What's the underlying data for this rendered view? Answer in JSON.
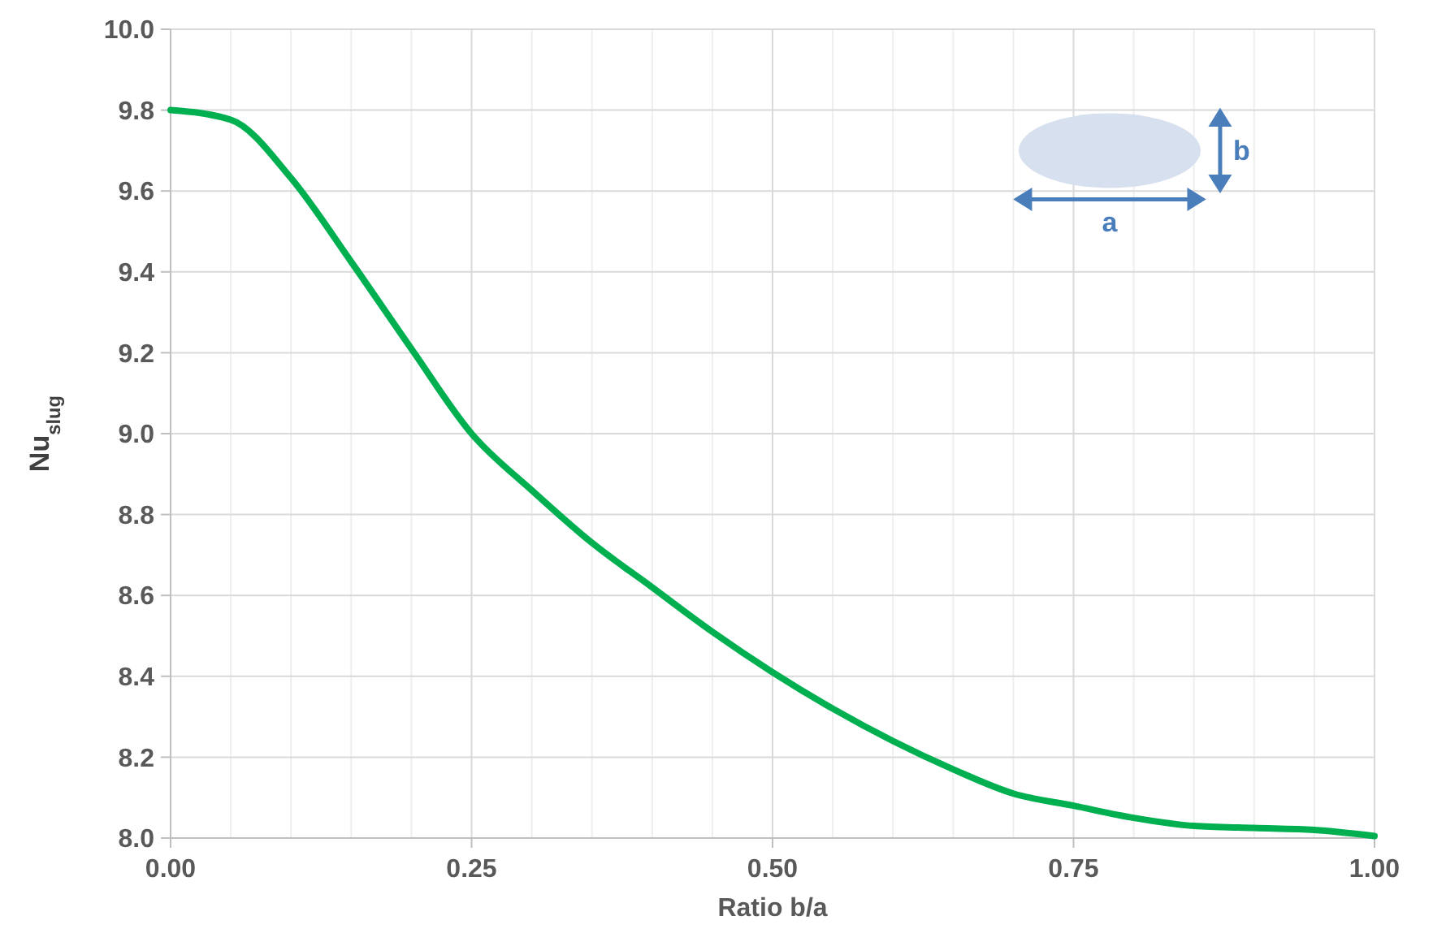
{
  "chart_data": {
    "type": "line",
    "xlabel": "Ratio b/a",
    "ylabel": "Nu$_{slug}$",
    "x": [
      0,
      0.05,
      0.1,
      0.15,
      0.2,
      0.25,
      0.3,
      0.35,
      0.4,
      0.45,
      0.5,
      0.55,
      0.6,
      0.65,
      0.7,
      0.75,
      0.8,
      0.85,
      0.9,
      0.95,
      1.0
    ],
    "series": [
      {
        "color": "#00b050",
        "values": [
          9.8,
          9.776,
          9.632,
          9.425,
          9.21,
          9.0,
          8.86,
          8.73,
          8.62,
          8.51,
          8.41,
          8.32,
          8.24,
          8.17,
          8.11,
          8.08,
          8.05,
          8.03,
          8.025,
          8.02,
          8.005
        ]
      }
    ],
    "xlim": [
      0,
      1
    ],
    "xticks": [
      {
        "value": 0,
        "label": "0.00"
      },
      {
        "value": 0.05,
        "label": null
      },
      {
        "value": 0.1,
        "label": null
      },
      {
        "value": 0.15,
        "label": null
      },
      {
        "value": 0.2,
        "label": null
      },
      {
        "value": 0.25,
        "label": "0.25"
      },
      {
        "value": 0.3,
        "label": null
      },
      {
        "value": 0.35,
        "label": null
      },
      {
        "value": 0.4,
        "label": null
      },
      {
        "value": 0.45,
        "label": null
      },
      {
        "value": 0.5,
        "label": "0.50"
      },
      {
        "value": 0.55,
        "label": null
      },
      {
        "value": 0.6,
        "label": null
      },
      {
        "value": 0.65,
        "label": null
      },
      {
        "value": 0.7,
        "label": null
      },
      {
        "value": 0.75,
        "label": "0.75"
      },
      {
        "value": 0.8,
        "label": null
      },
      {
        "value": 0.85,
        "label": null
      },
      {
        "value": 0.9,
        "label": null
      },
      {
        "value": 0.95,
        "label": null
      },
      {
        "value": 1,
        "label": "1.00"
      }
    ],
    "ylim": [
      8,
      10
    ],
    "yticks": [
      {
        "value": 8,
        "label": "8.0"
      },
      {
        "value": 8.2,
        "label": "8.2"
      },
      {
        "value": 8.4,
        "label": "8.4"
      },
      {
        "value": 8.6,
        "label": "8.6"
      },
      {
        "value": 8.8,
        "label": "8.8"
      },
      {
        "value": 9,
        "label": "9.0"
      },
      {
        "value": 9.2,
        "label": "9.2"
      },
      {
        "value": 9.4,
        "label": "9.4"
      },
      {
        "value": 9.6,
        "label": "9.6"
      },
      {
        "value": 9.8,
        "label": "9.8"
      },
      {
        "value": 10,
        "label": "10.0"
      }
    ],
    "grid": true,
    "marker": "none",
    "line_style": "solid",
    "annotations": [
      "a",
      "b"
    ]
  }
}
